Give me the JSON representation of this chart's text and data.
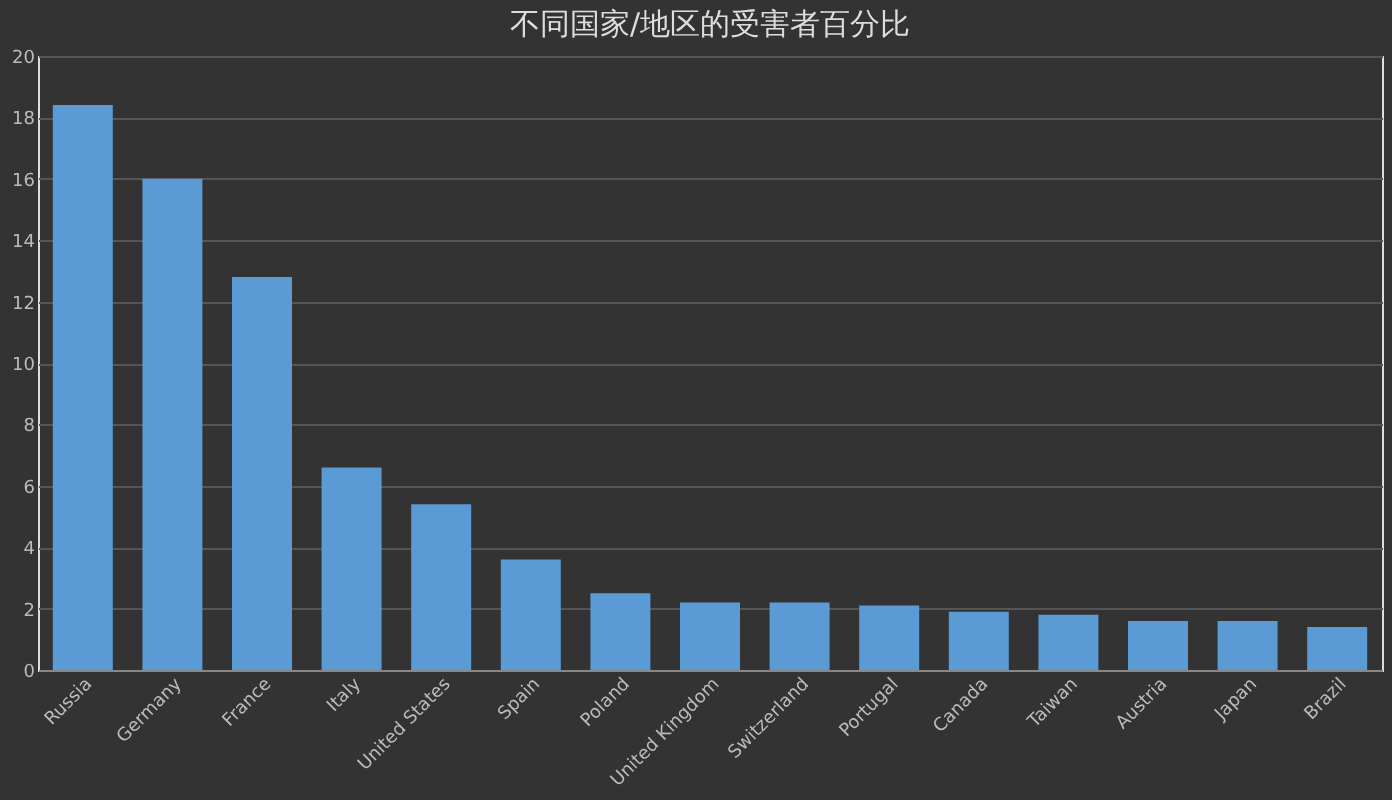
{
  "chart_data": {
    "type": "bar",
    "title": "不同国家/地区的受害者百分比",
    "categories": [
      "Russia",
      "Germany",
      "France",
      "Italy",
      "United States",
      "Spain",
      "Poland",
      "United Kingdom",
      "Switzerland",
      "Portugal",
      "Canada",
      "Taiwan",
      "Austria",
      "Japan",
      "Brazil"
    ],
    "values": [
      18.4,
      16.0,
      12.8,
      6.6,
      5.4,
      3.6,
      2.5,
      2.2,
      2.2,
      2.1,
      1.9,
      1.8,
      1.6,
      1.6,
      1.4
    ],
    "color": "#5b9bd5",
    "ylim": [
      0,
      20
    ],
    "yticks": [
      0,
      2,
      4,
      6,
      8,
      10,
      12,
      14,
      16,
      18,
      20
    ],
    "grid": "y"
  }
}
